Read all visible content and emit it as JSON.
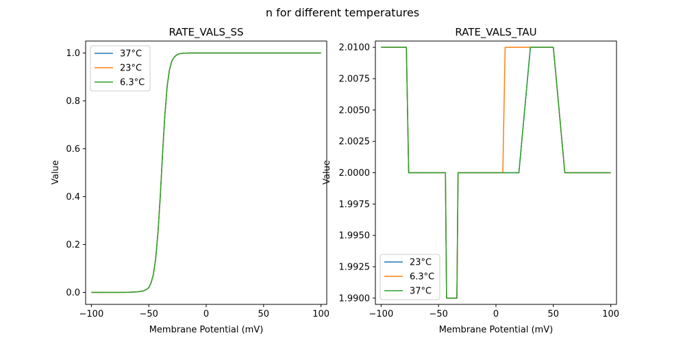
{
  "figure": {
    "suptitle": "n for different temperatures",
    "colors": {
      "blue": "#1f77b4",
      "orange": "#ff7f0e",
      "green": "#2ca02c"
    }
  },
  "chart_data": [
    {
      "type": "line",
      "title": "RATE_VALS_SS",
      "xlabel": "Membrane Potential (mV)",
      "ylabel": "Value",
      "xlim": [
        -105,
        105
      ],
      "ylim": [
        -0.05,
        1.05
      ],
      "xticks": [
        -100,
        -50,
        0,
        50,
        100
      ],
      "xtick_labels": [
        "−100",
        "−50",
        "0",
        "50",
        "100"
      ],
      "yticks": [
        0.0,
        0.2,
        0.4,
        0.6,
        0.8,
        1.0
      ],
      "ytick_labels": [
        "0.0",
        "0.2",
        "0.4",
        "0.6",
        "0.8",
        "1.0"
      ],
      "legend_loc": "upper left",
      "series": [
        {
          "name": "37°C",
          "color": "#1f77b4",
          "x": [
            -100,
            -70,
            -60,
            -55,
            -52,
            -50,
            -48,
            -46,
            -44,
            -42,
            -40,
            -38,
            -36,
            -34,
            -32,
            -30,
            -28,
            -26,
            -24,
            -22,
            -20,
            -15,
            0,
            50,
            100
          ],
          "y": [
            0,
            0.0003,
            0.002,
            0.006,
            0.012,
            0.02,
            0.04,
            0.075,
            0.14,
            0.25,
            0.4,
            0.58,
            0.74,
            0.86,
            0.93,
            0.965,
            0.982,
            0.991,
            0.996,
            0.998,
            0.999,
            1,
            1,
            1,
            1
          ]
        },
        {
          "name": "23°C",
          "color": "#ff7f0e",
          "x": [
            -100,
            -70,
            -60,
            -55,
            -52,
            -50,
            -48,
            -46,
            -44,
            -42,
            -40,
            -38,
            -36,
            -34,
            -32,
            -30,
            -28,
            -26,
            -24,
            -22,
            -20,
            -15,
            0,
            50,
            100
          ],
          "y": [
            0,
            0.0003,
            0.002,
            0.006,
            0.012,
            0.02,
            0.04,
            0.075,
            0.14,
            0.25,
            0.4,
            0.58,
            0.74,
            0.86,
            0.93,
            0.965,
            0.982,
            0.991,
            0.996,
            0.998,
            0.999,
            1,
            1,
            1,
            1
          ]
        },
        {
          "name": "6.3°C",
          "color": "#2ca02c",
          "x": [
            -100,
            -70,
            -60,
            -55,
            -52,
            -50,
            -48,
            -46,
            -44,
            -42,
            -40,
            -38,
            -36,
            -34,
            -32,
            -30,
            -28,
            -26,
            -24,
            -22,
            -20,
            -15,
            0,
            50,
            100
          ],
          "y": [
            0,
            0.0003,
            0.002,
            0.006,
            0.012,
            0.02,
            0.04,
            0.075,
            0.14,
            0.25,
            0.4,
            0.58,
            0.74,
            0.86,
            0.93,
            0.965,
            0.982,
            0.991,
            0.996,
            0.998,
            0.999,
            1,
            1,
            1,
            1
          ]
        }
      ]
    },
    {
      "type": "line",
      "title": "RATE_VALS_TAU",
      "xlabel": "Membrane Potential (mV)",
      "ylabel": "Value",
      "xlim": [
        -105,
        105
      ],
      "ylim": [
        1.9895,
        2.0105
      ],
      "xticks": [
        -100,
        -50,
        0,
        50,
        100
      ],
      "xtick_labels": [
        "−100",
        "−50",
        "0",
        "50",
        "100"
      ],
      "yticks": [
        1.99,
        1.9925,
        1.995,
        1.9975,
        2.0,
        2.0025,
        2.005,
        2.0075,
        2.01
      ],
      "ytick_labels": [
        "1.9900",
        "1.9925",
        "1.9950",
        "1.9975",
        "2.0000",
        "2.0025",
        "2.0050",
        "2.0075",
        "2.0100"
      ],
      "legend_loc": "lower left",
      "series": [
        {
          "name": "23°C",
          "color": "#1f77b4",
          "x": [
            -100,
            -78,
            -76,
            -44,
            -43,
            -34,
            -33,
            20,
            30,
            50,
            60,
            100
          ],
          "y": [
            2.01,
            2.01,
            2.0,
            2.0,
            1.99,
            1.99,
            2.0,
            2.0,
            2.01,
            2.01,
            2.0,
            2.0
          ]
        },
        {
          "name": "6.3°C",
          "color": "#ff7f0e",
          "x": [
            -100,
            -78,
            -76,
            -44,
            -43,
            -34,
            -33,
            6,
            8,
            50,
            60,
            100
          ],
          "y": [
            2.01,
            2.01,
            2.0,
            2.0,
            1.99,
            1.99,
            2.0,
            2.0,
            2.01,
            2.01,
            2.0,
            2.0
          ]
        },
        {
          "name": "37°C",
          "color": "#2ca02c",
          "x": [
            -100,
            -78,
            -76,
            -44,
            -43,
            -34,
            -33,
            20,
            30,
            50,
            60,
            100
          ],
          "y": [
            2.01,
            2.01,
            2.0,
            2.0,
            1.99,
            1.99,
            2.0,
            2.0,
            2.01,
            2.01,
            2.0,
            2.0
          ]
        }
      ]
    }
  ]
}
